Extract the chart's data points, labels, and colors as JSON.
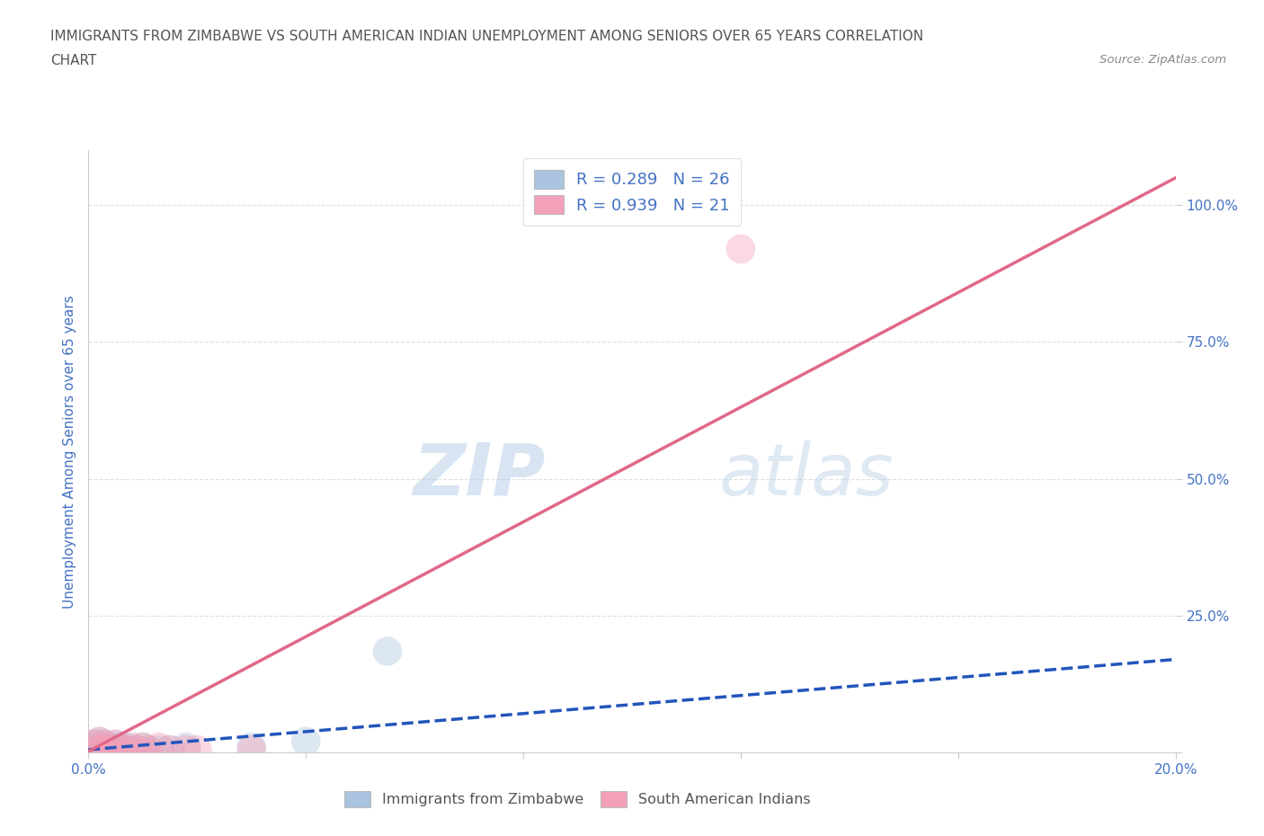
{
  "title_line1": "IMMIGRANTS FROM ZIMBABWE VS SOUTH AMERICAN INDIAN UNEMPLOYMENT AMONG SENIORS OVER 65 YEARS CORRELATION",
  "title_line2": "CHART",
  "source_text": "Source: ZipAtlas.com",
  "ylabel": "Unemployment Among Seniors over 65 years",
  "xlim": [
    0.0,
    0.2
  ],
  "ylim": [
    0.0,
    1.1
  ],
  "xticks": [
    0.0,
    0.04,
    0.08,
    0.12,
    0.16,
    0.2
  ],
  "xticklabels": [
    "0.0%",
    "",
    "",
    "",
    "",
    "20.0%"
  ],
  "yticks": [
    0.0,
    0.25,
    0.5,
    0.75,
    1.0
  ],
  "yticklabels": [
    "",
    "25.0%",
    "50.0%",
    "75.0%",
    "100.0%"
  ],
  "watermark1": "ZIP",
  "watermark2": "atlas",
  "legend_r1": "R = 0.289   N = 26",
  "legend_r2": "R = 0.939   N = 21",
  "legend_label1": "Immigrants from Zimbabwe",
  "legend_label2": "South American Indians",
  "blue_color": "#aac4e0",
  "pink_color": "#f4a0b8",
  "blue_line_color": "#2255bb",
  "pink_line_color": "#e06888",
  "title_color": "#555555",
  "axis_label_color": "#4472c4",
  "tick_color": "#4472c4",
  "grid_color": "#e0e0e0",
  "blue_scatter_x": [
    0.001,
    0.001,
    0.001,
    0.002,
    0.002,
    0.002,
    0.003,
    0.003,
    0.004,
    0.004,
    0.005,
    0.005,
    0.006,
    0.006,
    0.007,
    0.007,
    0.008,
    0.009,
    0.01,
    0.011,
    0.013,
    0.015,
    0.018,
    0.03,
    0.04,
    0.055
  ],
  "blue_scatter_y": [
    0.005,
    0.01,
    0.015,
    0.005,
    0.01,
    0.02,
    0.005,
    0.015,
    0.005,
    0.01,
    0.005,
    0.015,
    0.005,
    0.01,
    0.005,
    0.01,
    0.005,
    0.005,
    0.01,
    0.005,
    0.005,
    0.005,
    0.01,
    0.01,
    0.02,
    0.185
  ],
  "pink_scatter_x": [
    0.001,
    0.001,
    0.002,
    0.002,
    0.003,
    0.003,
    0.004,
    0.005,
    0.005,
    0.006,
    0.007,
    0.008,
    0.009,
    0.01,
    0.011,
    0.013,
    0.015,
    0.018,
    0.02,
    0.03,
    0.12
  ],
  "pink_scatter_y": [
    0.005,
    0.015,
    0.005,
    0.02,
    0.005,
    0.015,
    0.005,
    0.005,
    0.015,
    0.005,
    0.005,
    0.01,
    0.005,
    0.01,
    0.005,
    0.01,
    0.005,
    0.005,
    0.005,
    0.005,
    0.92
  ],
  "blue_trend_x": [
    0.0,
    0.2
  ],
  "blue_trend_y": [
    0.005,
    0.17
  ],
  "pink_trend_x": [
    0.0,
    0.2
  ],
  "pink_trend_y": [
    0.002,
    1.05
  ],
  "scatter_size": 550,
  "scatter_alpha": 0.4,
  "line_width": 2.5
}
